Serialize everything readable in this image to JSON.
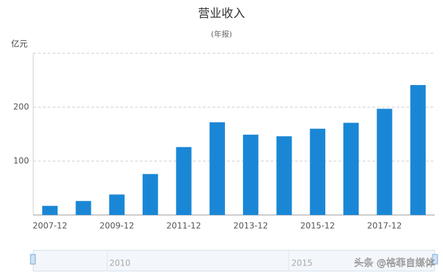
{
  "chart_data": {
    "type": "bar",
    "title": "营业收入",
    "subtitle": "(年报)",
    "y_axis_label": "亿元",
    "categories": [
      "2007-12",
      null,
      "2009-12",
      null,
      "2011-12",
      null,
      "2013-12",
      null,
      "2015-12",
      null,
      "2017-12",
      null
    ],
    "values": [
      17,
      26,
      38,
      76,
      126,
      172,
      149,
      146,
      160,
      171,
      197,
      241
    ],
    "color": "#1a87d6",
    "ylim": [
      0,
      300
    ],
    "yticks": [
      100,
      200
    ],
    "grid": true,
    "slider_labels": [
      "2010",
      "2015"
    ],
    "watermark": "头条 @格菲自媒体"
  }
}
